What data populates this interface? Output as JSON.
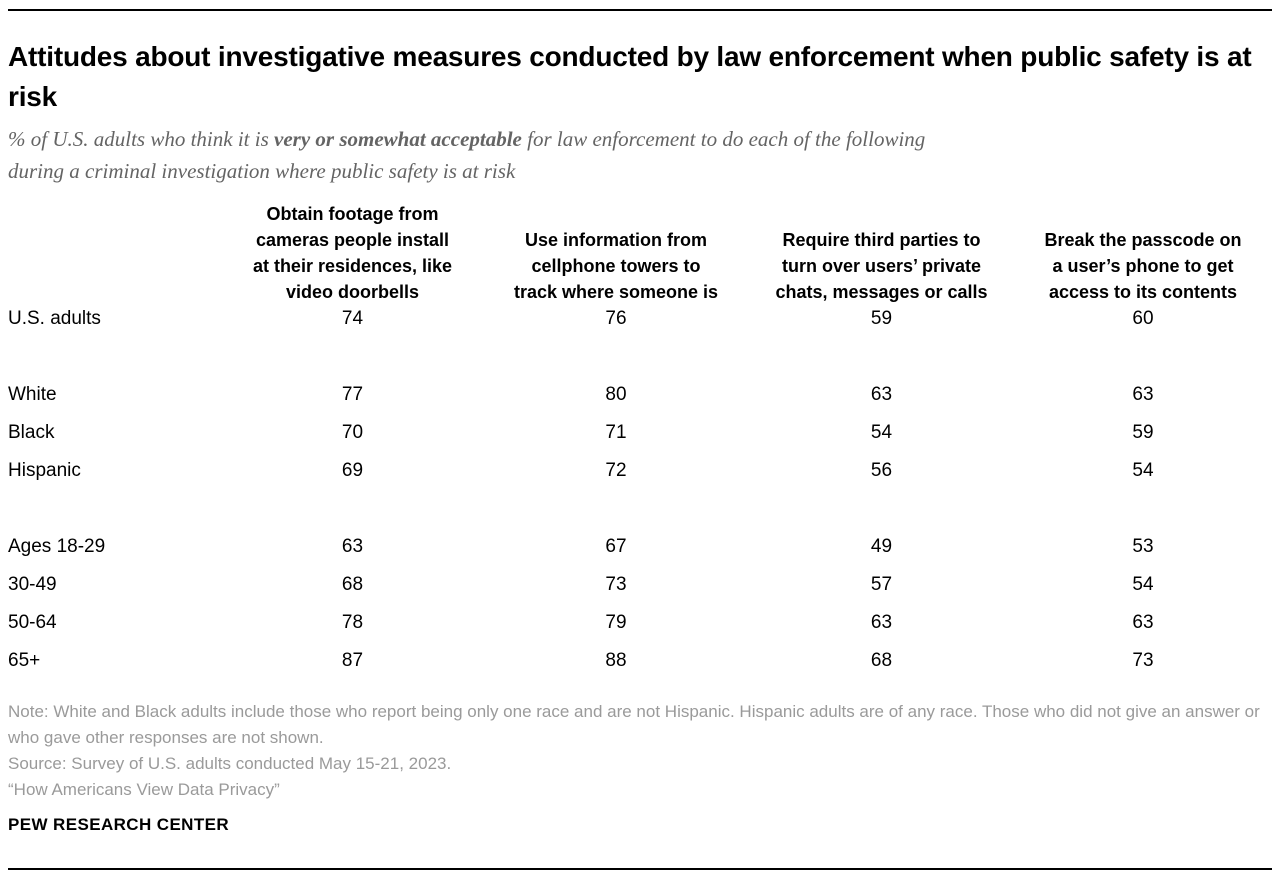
{
  "colors": {
    "title": "#000000",
    "subtitle": "#646464",
    "table_text": "#000000",
    "notes": "#9a9a9a",
    "divider": "#000000",
    "background": "#ffffff"
  },
  "chart_data": {
    "type": "table",
    "title": "Attitudes about investigative measures conducted by law enforcement when public safety is at risk",
    "subtitle": {
      "line1_prefix": "% of U.S. adults who think it is ",
      "line1_bold": "very or somewhat acceptable",
      "line1_suffix": " for law enforcement to do each of the following",
      "line2": "during a criminal investigation where public safety is at risk"
    },
    "columns": [
      "Obtain footage from\ncameras people install\nat their residences, like\nvideo doorbells",
      "Use information from\ncellphone towers to\ntrack where someone is",
      "Require third parties to\nturn over users’ private\nchats, messages or calls",
      "Break the passcode on\na user’s phone to get\naccess to its contents"
    ],
    "row_groups": [
      {
        "rows": [
          {
            "label": "U.S. adults",
            "values": [
              74,
              76,
              59,
              60
            ]
          }
        ]
      },
      {
        "rows": [
          {
            "label": "White",
            "values": [
              77,
              80,
              63,
              63
            ]
          },
          {
            "label": "Black",
            "values": [
              70,
              71,
              54,
              59
            ]
          },
          {
            "label": "Hispanic",
            "values": [
              69,
              72,
              56,
              54
            ]
          }
        ]
      },
      {
        "rows": [
          {
            "label": "Ages 18-29",
            "values": [
              63,
              67,
              49,
              53
            ]
          },
          {
            "label": "30-49",
            "values": [
              68,
              73,
              57,
              54
            ]
          },
          {
            "label": "50-64",
            "values": [
              78,
              79,
              63,
              63
            ]
          },
          {
            "label": "65+",
            "values": [
              87,
              88,
              68,
              73
            ]
          }
        ]
      }
    ],
    "note": "Note: White and Black adults include those who report being only one race and are not Hispanic. Hispanic adults are of any race. Those who did not give an answer or who gave other responses are not shown.",
    "source": "Source: Survey of U.S. adults conducted May 15-21, 2023.",
    "citation": "“How Americans View Data Privacy”",
    "brand": "PEW RESEARCH CENTER"
  }
}
